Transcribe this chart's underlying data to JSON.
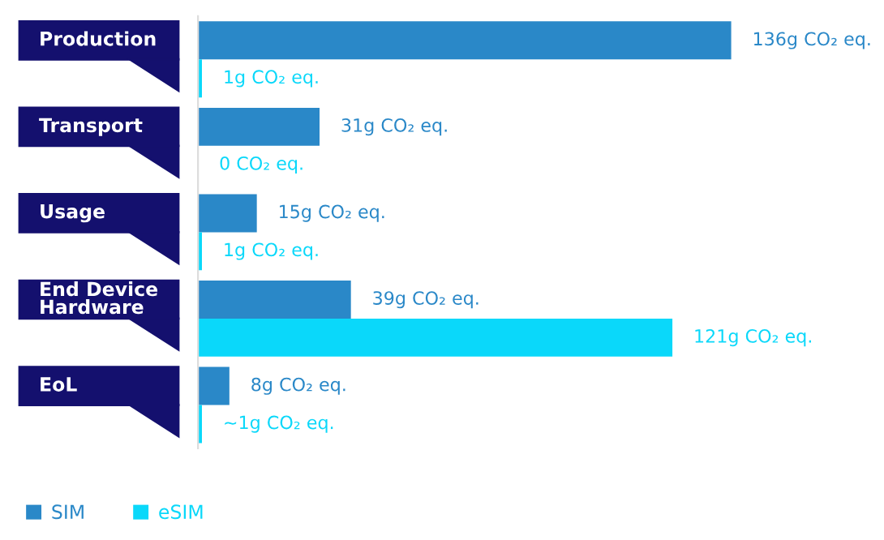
{
  "chart_data": {
    "type": "bar",
    "orientation": "horizontal",
    "categories": [
      "Production",
      "Transport",
      "Usage",
      "End Device\nHardware",
      "EoL"
    ],
    "series": [
      {
        "name": "SIM",
        "color": "#2a88c8",
        "values": [
          136,
          31,
          15,
          39,
          8
        ],
        "value_labels": [
          "136g CO₂ eq.",
          "31g CO₂ eq.",
          "15g CO₂ eq.",
          "39g CO₂ eq.",
          "8g CO₂ eq."
        ]
      },
      {
        "name": "eSIM",
        "color": "#0ad8fa",
        "values": [
          1,
          0,
          1,
          121,
          1
        ],
        "value_labels": [
          "1g CO₂ eq.",
          "0 CO₂ eq.",
          "1g CO₂ eq.",
          "121g CO₂ eq.",
          "~1g CO₂ eq."
        ]
      }
    ],
    "legend": "bottom left",
    "tick_labels": "y"
  }
}
